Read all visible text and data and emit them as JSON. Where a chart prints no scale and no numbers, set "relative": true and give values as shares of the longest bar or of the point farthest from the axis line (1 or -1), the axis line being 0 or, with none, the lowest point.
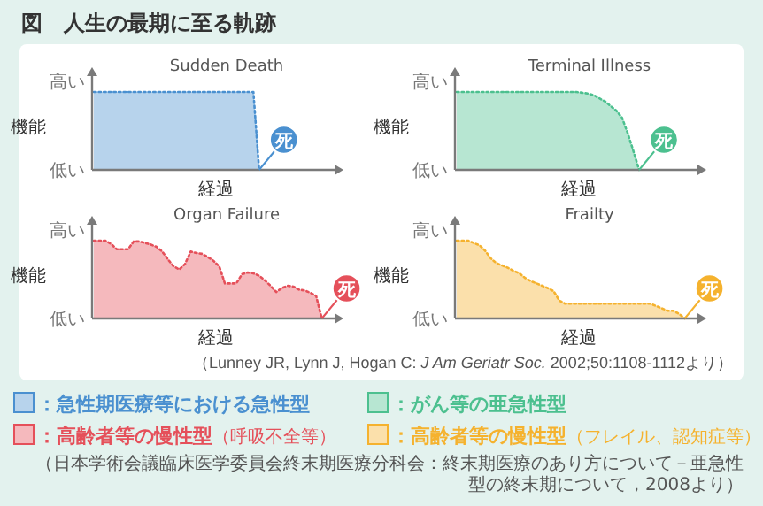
{
  "chart_data": [
    {
      "type": "area",
      "title": "Sudden Death",
      "xlabel": "経過",
      "ylabel": "機能",
      "relative": true,
      "line_style": "dotted",
      "legend": "bottom",
      "annotations": [
        "高い",
        "低い",
        "死"
      ],
      "categories": [
        null,
        null,
        null,
        null,
        null,
        null,
        null,
        null,
        null,
        null,
        null,
        null,
        null,
        null,
        null,
        null,
        null,
        null,
        null,
        null,
        null,
        null,
        null,
        null,
        null,
        null,
        null,
        null,
        null,
        null,
        null,
        null,
        null,
        null,
        null,
        null,
        null,
        null,
        null,
        null,
        null,
        null
      ],
      "series": [
        {
          "name": "：急性期医療等における急性型",
          "color": "#4a90d0",
          "values": [
            1,
            1,
            1,
            1,
            1,
            1,
            1,
            1,
            1,
            1,
            1,
            1,
            1,
            1,
            1,
            1,
            1,
            1,
            1,
            1,
            1,
            1,
            1,
            1,
            1,
            1,
            1,
            1,
            1,
            0,
            null,
            null,
            null,
            null,
            null,
            null,
            null,
            null,
            null,
            null,
            null,
            null
          ]
        }
      ]
    },
    {
      "type": "area",
      "title": "Terminal Illness",
      "xlabel": "経過",
      "ylabel": "機能",
      "relative": true,
      "line_style": "dotted",
      "legend": "bottom",
      "annotations": [
        "高い",
        "低い",
        "死"
      ],
      "categories": [
        null,
        null,
        null,
        null,
        null,
        null,
        null,
        null,
        null,
        null,
        null,
        null,
        null,
        null,
        null,
        null,
        null,
        null,
        null,
        null,
        null,
        null,
        null,
        null,
        null,
        null,
        null,
        null,
        null,
        null,
        null,
        null,
        null,
        null,
        null,
        null,
        null,
        null,
        null,
        null,
        null,
        null
      ],
      "series": [
        {
          "name": "：がん等の亜急性型",
          "color": "#4cc08f",
          "values": [
            1,
            1,
            1,
            1,
            1,
            1,
            1,
            1,
            1,
            1,
            1,
            1,
            1,
            1,
            1,
            1,
            1,
            1,
            1,
            1,
            1,
            1,
            0.99,
            0.98,
            0.96,
            0.92,
            0.88,
            0.82,
            0.76,
            0.67,
            0.47,
            0.24,
            0,
            null,
            null,
            null,
            null,
            null,
            null,
            null,
            null,
            null
          ]
        }
      ]
    },
    {
      "type": "area",
      "title": "Organ Failure",
      "xlabel": "経過",
      "ylabel": "機能",
      "relative": true,
      "line_style": "dotted",
      "legend": "bottom",
      "annotations": [
        "高い",
        "低い",
        "死"
      ],
      "categories": [
        null,
        null,
        null,
        null,
        null,
        null,
        null,
        null,
        null,
        null,
        null,
        null,
        null,
        null,
        null,
        null,
        null,
        null,
        null,
        null,
        null,
        null,
        null,
        null,
        null,
        null,
        null,
        null,
        null,
        null,
        null,
        null,
        null,
        null,
        null,
        null,
        null,
        null,
        null,
        null,
        null,
        null
      ],
      "series": [
        {
          "name": "：高齢者等の慢性型（呼吸不全等）",
          "color": "#e5505a",
          "values": [
            1,
            1,
            1,
            0.96,
            0.89,
            0.89,
            0.89,
            0.99,
            0.99,
            0.97,
            0.95,
            0.92,
            0.86,
            0.76,
            0.67,
            0.63,
            0.7,
            0.86,
            0.84,
            0.83,
            0.79,
            0.74,
            0.67,
            0.45,
            0.45,
            0.45,
            0.57,
            0.59,
            0.58,
            0.55,
            0.49,
            0.42,
            0.34,
            0.39,
            0.42,
            0.41,
            0.37,
            0.36,
            0.33,
            0.29,
            0,
            null
          ]
        }
      ]
    },
    {
      "type": "area",
      "title": "Frailty",
      "xlabel": "経過",
      "ylabel": "機能",
      "relative": true,
      "line_style": "dotted",
      "legend": "bottom",
      "annotations": [
        "高い",
        "低い",
        "死"
      ],
      "categories": [
        null,
        null,
        null,
        null,
        null,
        null,
        null,
        null,
        null,
        null,
        null,
        null,
        null,
        null,
        null,
        null,
        null,
        null,
        null,
        null,
        null,
        null,
        null,
        null,
        null,
        null,
        null,
        null,
        null,
        null,
        null,
        null,
        null,
        null,
        null,
        null,
        null,
        null,
        null,
        null,
        null,
        null
      ],
      "series": [
        {
          "name": "：高齢者等の慢性型（フレイル、認知症等）",
          "color": "#f5b22e",
          "values": [
            1,
            1,
            1,
            0.97,
            0.94,
            0.87,
            0.77,
            0.71,
            0.68,
            0.65,
            0.61,
            0.58,
            0.52,
            0.48,
            0.45,
            0.42,
            0.39,
            0.35,
            0.23,
            0.19,
            0.19,
            0.19,
            0.19,
            0.19,
            0.19,
            0.19,
            0.19,
            0.19,
            0.19,
            0.19,
            0.19,
            0.19,
            0.19,
            0.19,
            0.19,
            0.16,
            0.13,
            0.1,
            0.1,
            0.06,
            0,
            null
          ]
        }
      ]
    },
    {
      "type": "other",
      "title": "図　人生の最期に至る軌跡",
      "annotations": [
        "（Lunney JR, Lynn J, Hogan C: *J Am Geriatr Soc.* 2002;50:1108-1112より）",
        "（日本学術会議臨床医学委員会終末期医療分科会：終末期医療のあり方について－亜急性型の終末期について，2008より）"
      ]
    }
  ]
}
